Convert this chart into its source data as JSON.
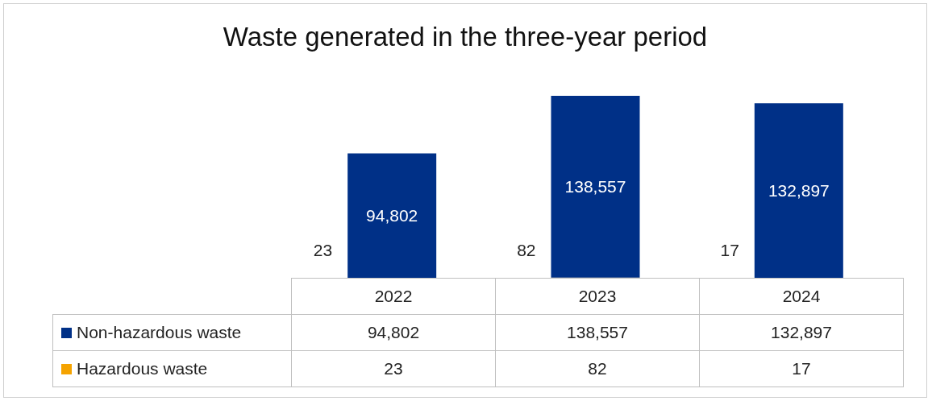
{
  "chart_data": {
    "type": "bar",
    "title": "Waste generated in the three-year period",
    "categories": [
      "2022",
      "2023",
      "2024"
    ],
    "stacked": true,
    "legend": "bottom",
    "series": [
      {
        "name": "Hazardous waste",
        "color": "#f5a300",
        "values": [
          23,
          82,
          17
        ],
        "value_labels": [
          "23",
          "82",
          "17"
        ]
      },
      {
        "name": "Non-hazardous waste",
        "color": "#003087",
        "values": [
          94802,
          138557,
          132897
        ],
        "value_labels": [
          "94,802",
          "138,557",
          "132,897"
        ]
      }
    ]
  }
}
